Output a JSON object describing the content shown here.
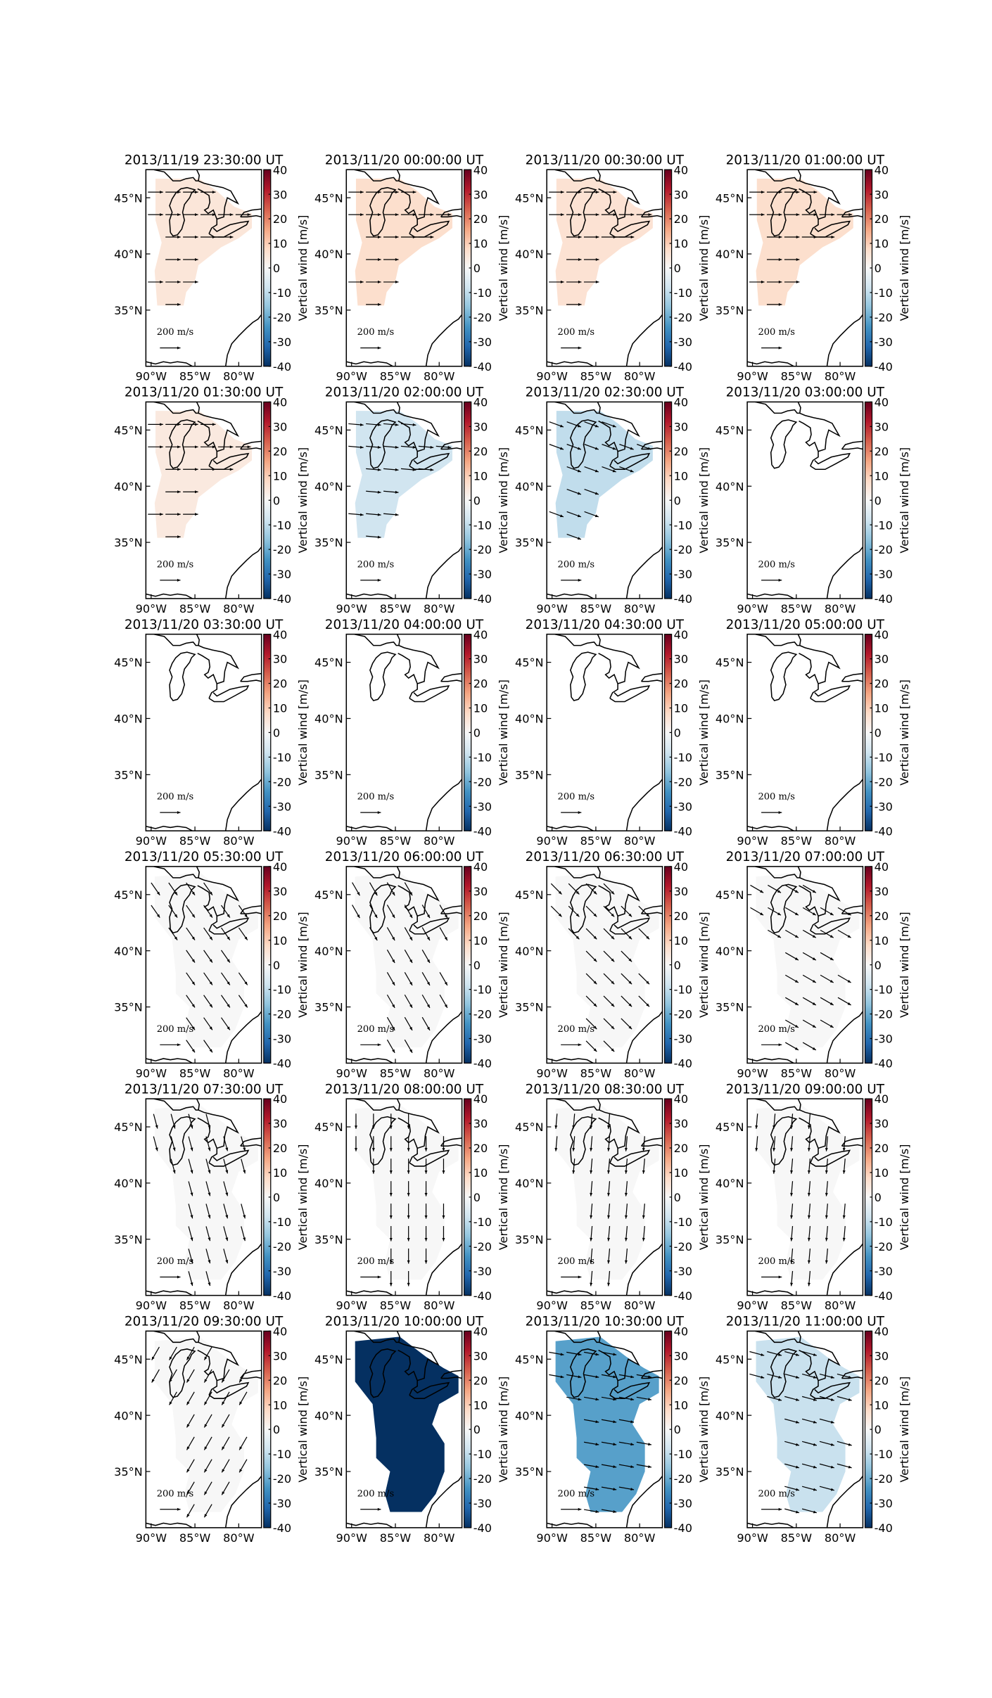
{
  "lon_range": [
    -90.6,
    -77.4
  ],
  "lat_range": [
    30,
    47.5
  ],
  "lon_ticks": [
    {
      "value": -90,
      "label": "90°W"
    },
    {
      "value": -85,
      "label": "85°W"
    },
    {
      "value": -80,
      "label": "80°W"
    }
  ],
  "lat_ticks": [
    {
      "value": 35,
      "label": "35°N"
    },
    {
      "value": 40,
      "label": "40°N"
    },
    {
      "value": 45,
      "label": "45°N"
    }
  ],
  "colorbar": {
    "label": "Vertical wind [m/s]",
    "range": [
      -40,
      40
    ],
    "ticks": [
      -40,
      -30,
      -20,
      -10,
      0,
      10,
      20,
      30,
      40
    ]
  },
  "arrow_key_label": "200 m/s",
  "panels": [
    {
      "title": "2013/11/19 23:30:00 UT",
      "vertical_wind": 5,
      "arrow_angle": 0
    },
    {
      "title": "2013/11/20 00:00:00 UT",
      "vertical_wind": 7,
      "arrow_angle": 0
    },
    {
      "title": "2013/11/20 00:30:00 UT",
      "vertical_wind": 6,
      "arrow_angle": 0
    },
    {
      "title": "2013/11/20 01:00:00 UT",
      "vertical_wind": 7,
      "arrow_angle": 0
    },
    {
      "title": "2013/11/20 01:30:00 UT",
      "vertical_wind": 4,
      "arrow_angle": 0
    },
    {
      "title": "2013/11/20 02:00:00 UT",
      "vertical_wind": -8,
      "arrow_angle": 5
    },
    {
      "title": "2013/11/20 02:30:00 UT",
      "vertical_wind": -10,
      "arrow_angle": 20
    },
    {
      "title": "2013/11/20 03:00:00 UT",
      "vertical_wind": null,
      "arrow_angle": null
    },
    {
      "title": "2013/11/20 03:30:00 UT",
      "vertical_wind": null,
      "arrow_angle": null
    },
    {
      "title": "2013/11/20 04:00:00 UT",
      "vertical_wind": null,
      "arrow_angle": null
    },
    {
      "title": "2013/11/20 04:30:00 UT",
      "vertical_wind": null,
      "arrow_angle": null
    },
    {
      "title": "2013/11/20 05:00:00 UT",
      "vertical_wind": null,
      "arrow_angle": null
    },
    {
      "title": "2013/11/20 05:30:00 UT",
      "vertical_wind": 0,
      "arrow_angle": 55
    },
    {
      "title": "2013/11/20 06:00:00 UT",
      "vertical_wind": 0,
      "arrow_angle": 60
    },
    {
      "title": "2013/11/20 06:30:00 UT",
      "vertical_wind": 0,
      "arrow_angle": 45
    },
    {
      "title": "2013/11/20 07:00:00 UT",
      "vertical_wind": 0,
      "arrow_angle": 30
    },
    {
      "title": "2013/11/20 07:30:00 UT",
      "vertical_wind": 0,
      "arrow_angle": 75
    },
    {
      "title": "2013/11/20 08:00:00 UT",
      "vertical_wind": 0,
      "arrow_angle": 90
    },
    {
      "title": "2013/11/20 08:30:00 UT",
      "vertical_wind": 0,
      "arrow_angle": 95
    },
    {
      "title": "2013/11/20 09:00:00 UT",
      "vertical_wind": 0,
      "arrow_angle": 95
    },
    {
      "title": "2013/11/20 09:30:00 UT",
      "vertical_wind": 0,
      "arrow_angle": 120
    },
    {
      "title": "2013/11/20 10:00:00 UT",
      "vertical_wind": -40,
      "arrow_angle": null
    },
    {
      "title": "2013/11/20 10:30:00 UT",
      "vertical_wind": -22,
      "arrow_angle": 10
    },
    {
      "title": "2013/11/20 11:00:00 UT",
      "vertical_wind": -9,
      "arrow_angle": 15
    }
  ]
}
